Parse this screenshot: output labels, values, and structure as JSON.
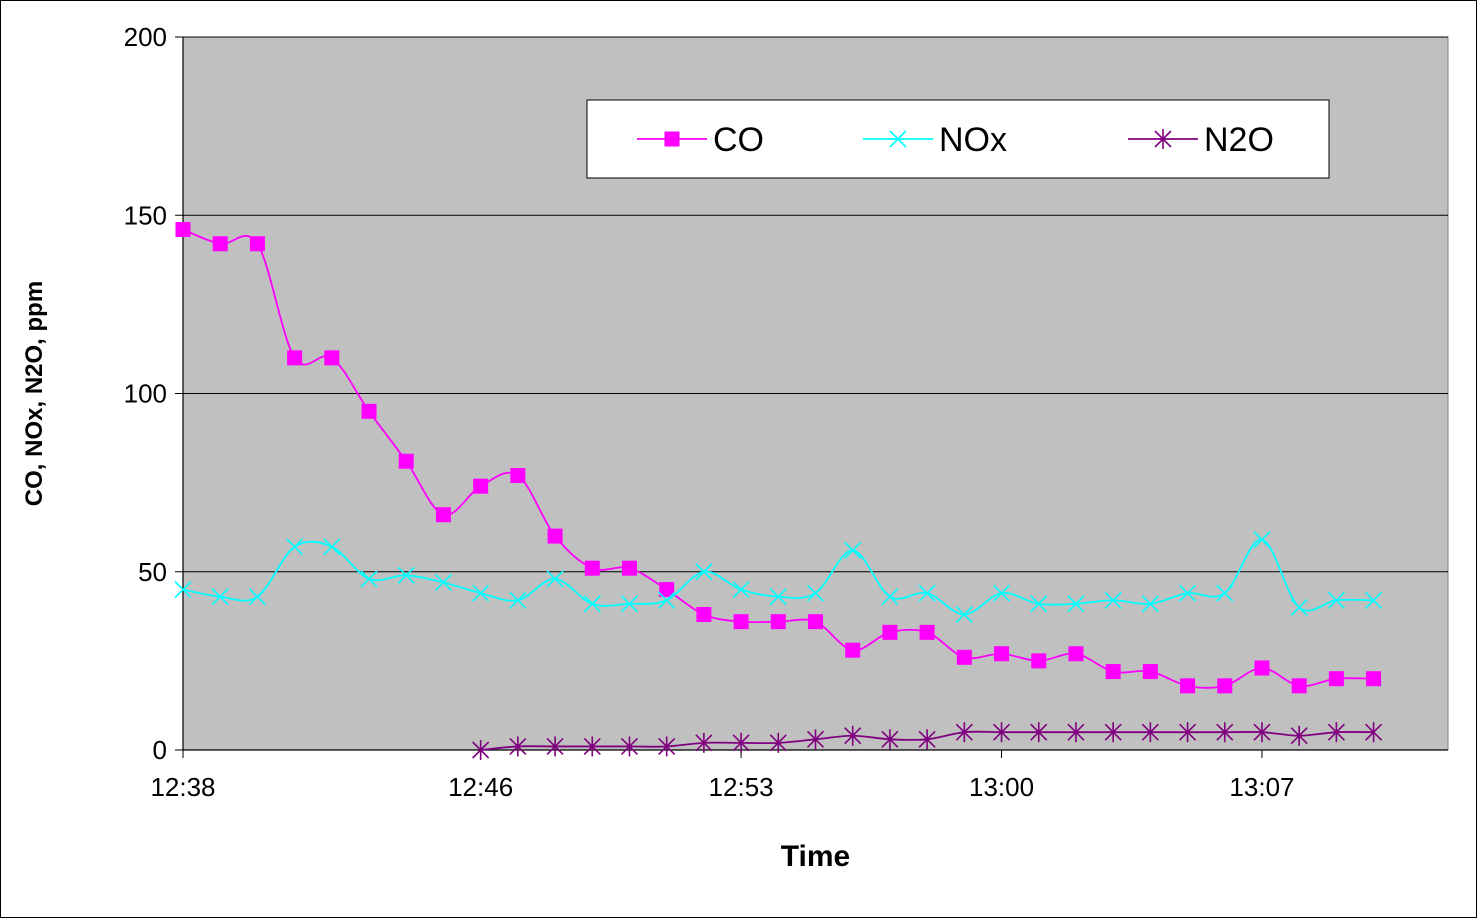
{
  "chart_data": {
    "type": "line",
    "xlabel": "Time",
    "ylabel": "CO, NOx, N2O, ppm",
    "ylim": [
      0,
      200
    ],
    "yticks": [
      0,
      50,
      100,
      150,
      200
    ],
    "xlim": [
      "12:38",
      "13:12"
    ],
    "xticks": [
      "12:38",
      "12:46",
      "12:53",
      "13:00",
      "13:07"
    ],
    "grid": "horizontal major gridlines",
    "legend": "top-right, inside plot area, single row",
    "plot_background": "#C0C0C0",
    "series": [
      {
        "name": "CO",
        "color": "#FF00FF",
        "marker": "square",
        "x": [
          "12:38",
          "12:39",
          "12:40",
          "12:41",
          "12:42",
          "12:43",
          "12:44",
          "12:45",
          "12:46",
          "12:47",
          "12:48",
          "12:49",
          "12:50",
          "12:51",
          "12:52",
          "12:53",
          "12:54",
          "12:55",
          "12:56",
          "12:57",
          "12:58",
          "12:59",
          "13:00",
          "13:01",
          "13:02",
          "13:03",
          "13:04",
          "13:05",
          "13:06",
          "13:07",
          "13:08",
          "13:09",
          "13:10"
        ],
        "y": [
          146,
          142,
          142,
          110,
          110,
          95,
          81,
          66,
          74,
          77,
          60,
          51,
          51,
          45,
          38,
          36,
          36,
          36,
          28,
          33,
          33,
          26,
          27,
          25,
          27,
          22,
          22,
          18,
          18,
          23,
          18,
          20,
          20
        ]
      },
      {
        "name": "NOx",
        "color": "#00FFFF",
        "marker": "x",
        "x": [
          "12:38",
          "12:39",
          "12:40",
          "12:41",
          "12:42",
          "12:43",
          "12:44",
          "12:45",
          "12:46",
          "12:47",
          "12:48",
          "12:49",
          "12:50",
          "12:51",
          "12:52",
          "12:53",
          "12:54",
          "12:55",
          "12:56",
          "12:57",
          "12:58",
          "12:59",
          "13:00",
          "13:01",
          "13:02",
          "13:03",
          "13:04",
          "13:05",
          "13:06",
          "13:07",
          "13:08",
          "13:09",
          "13:10"
        ],
        "y": [
          45,
          43,
          43,
          57,
          57,
          48,
          49,
          47,
          44,
          42,
          48,
          41,
          41,
          42,
          50,
          45,
          43,
          44,
          56,
          43,
          44,
          38,
          44,
          41,
          41,
          42,
          41,
          44,
          44,
          59,
          40,
          42,
          42
        ]
      },
      {
        "name": "N2O",
        "color": "#800080",
        "marker": "asterisk",
        "x": [
          "12:46",
          "12:47",
          "12:48",
          "12:49",
          "12:50",
          "12:51",
          "12:52",
          "12:53",
          "12:54",
          "12:55",
          "12:56",
          "12:57",
          "12:58",
          "12:59",
          "13:00",
          "13:01",
          "13:02",
          "13:03",
          "13:04",
          "13:05",
          "13:06",
          "13:07",
          "13:08",
          "13:09",
          "13:10"
        ],
        "y": [
          0,
          1,
          1,
          1,
          1,
          1,
          2,
          2,
          2,
          3,
          4,
          3,
          3,
          5,
          5,
          5,
          5,
          5,
          5,
          5,
          5,
          5,
          4,
          5,
          5
        ]
      }
    ]
  }
}
